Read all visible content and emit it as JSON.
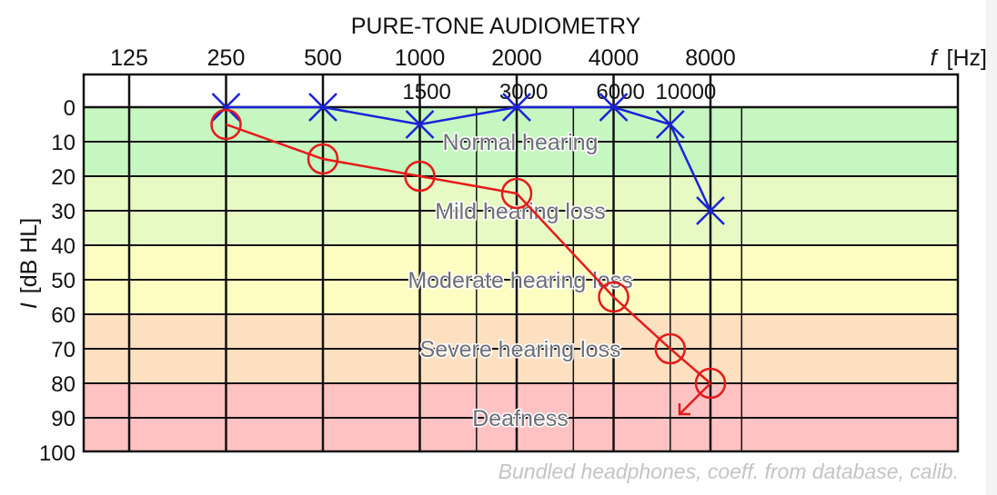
{
  "chart_data": {
    "type": "line",
    "title": "PURE-TONE AUDIOMETRY",
    "xlabel": "f [Hz]",
    "ylabel": "I [dB HL]",
    "x_scale": "log",
    "y_inverted": true,
    "ylim": [
      0,
      100
    ],
    "y_ticks": [
      0,
      10,
      20,
      30,
      40,
      50,
      60,
      70,
      80,
      90,
      100
    ],
    "x_ticks_top": [
      125,
      250,
      500,
      1000,
      2000,
      4000,
      8000
    ],
    "x_ticks_inner": [
      1500,
      3000,
      6000,
      10000
    ],
    "zones": [
      {
        "label": "Normal hearing",
        "from": 0,
        "to": 20,
        "color": "#c6f7c0"
      },
      {
        "label": "Mild hearing loss",
        "from": 20,
        "to": 40,
        "color": "#e8fac4"
      },
      {
        "label": "Moderate hearing loss",
        "from": 40,
        "to": 60,
        "color": "#fdfdc2"
      },
      {
        "label": "Severe hearing loss",
        "from": 60,
        "to": 80,
        "color": "#fde0c0"
      },
      {
        "label": "Deafness",
        "from": 80,
        "to": 100,
        "color": "#fec2c2"
      }
    ],
    "series": [
      {
        "marker": "x",
        "color": "#1a22d8",
        "x": [
          250,
          500,
          1000,
          2000,
          4000,
          6000,
          8000
        ],
        "values": [
          0,
          0,
          5,
          0,
          0,
          5,
          30
        ]
      },
      {
        "marker": "o",
        "color": "#e51a1a",
        "x": [
          250,
          500,
          1000,
          2000,
          4000,
          6000,
          8000
        ],
        "values": [
          5,
          15,
          20,
          25,
          55,
          70,
          80
        ],
        "no_response_at": [
          8000
        ]
      }
    ],
    "grid": true
  },
  "caption": {
    "title": "PURE-TONE AUDIOMETRY",
    "x_axis_f": "f",
    "x_axis_unit": "[Hz]",
    "y_axis_I": "I",
    "y_axis_unit": "[dB HL]",
    "footnote": "Bundled headphones, coeff. from database, calib."
  }
}
